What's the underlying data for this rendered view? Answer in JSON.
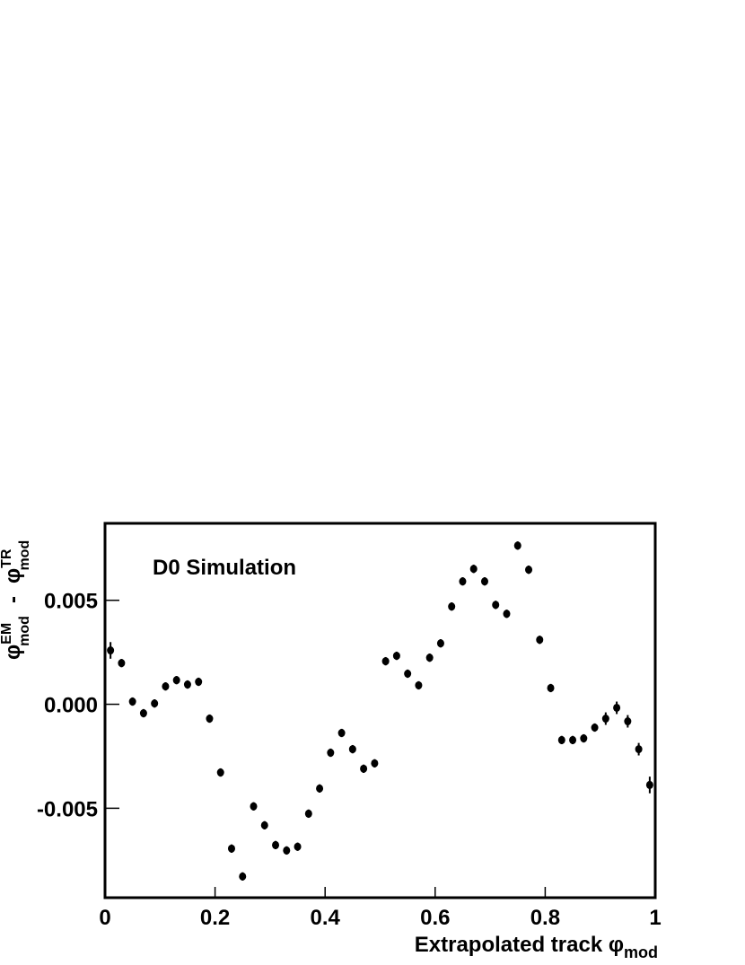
{
  "chart_data": {
    "type": "errorbar",
    "annotation": "D0 Simulation",
    "xlabel": {
      "text": "Extrapolated track φ",
      "sub": "mod"
    },
    "ylabel": {
      "symbol1": "φ",
      "sup1": "EM",
      "sub1": "mod",
      "minus": "-",
      "symbol2": "φ",
      "sup2": "TR",
      "sub2": "mod"
    },
    "x": [
      0.01,
      0.03,
      0.05,
      0.07,
      0.09,
      0.11,
      0.13,
      0.15,
      0.17,
      0.19,
      0.21,
      0.23,
      0.25,
      0.27,
      0.29,
      0.31,
      0.33,
      0.35,
      0.37,
      0.39,
      0.41,
      0.43,
      0.45,
      0.47,
      0.49,
      0.51,
      0.53,
      0.55,
      0.57,
      0.59,
      0.61,
      0.63,
      0.65,
      0.67,
      0.69,
      0.71,
      0.73,
      0.75,
      0.77,
      0.79,
      0.81,
      0.83,
      0.85,
      0.87,
      0.89,
      0.91,
      0.93,
      0.95,
      0.97,
      0.99
    ],
    "values": [
      0.00259,
      0.00198,
      0.00013,
      -0.00043,
      4e-05,
      0.00086,
      0.00116,
      0.00095,
      0.00108,
      -0.00069,
      -0.00328,
      -0.00694,
      -0.00828,
      -0.00491,
      -0.00582,
      -0.00677,
      -0.00703,
      -0.00685,
      -0.00526,
      -0.00405,
      -0.00233,
      -0.00138,
      -0.00216,
      -0.0031,
      -0.00284,
      0.00207,
      0.00233,
      0.00147,
      0.00091,
      0.00224,
      0.00293,
      0.0047,
      0.00591,
      0.00651,
      0.00591,
      0.00478,
      0.00435,
      0.00763,
      0.00647,
      0.0031,
      0.00078,
      -0.00172,
      -0.00172,
      -0.00164,
      -0.00112,
      -0.00069,
      -0.00017,
      -0.00082,
      -0.00216,
      -0.00388
    ],
    "errors": [
      0.0004,
      0.0002,
      0.0002,
      0.0002,
      0.0002,
      0.0002,
      0.0002,
      0.0002,
      0.0002,
      0.0002,
      0.0002,
      0.0002,
      0.0002,
      0.0002,
      0.0002,
      0.0002,
      0.0002,
      0.0002,
      0.0002,
      0.0002,
      0.0002,
      0.0002,
      0.0002,
      0.0002,
      0.0002,
      0.0002,
      0.0002,
      0.0002,
      0.0002,
      0.0002,
      0.0002,
      0.0002,
      0.0002,
      0.0002,
      0.0002,
      0.0002,
      0.0002,
      0.0002,
      0.0002,
      0.0002,
      0.0002,
      0.0002,
      0.0002,
      0.0002,
      0.0002,
      0.0003,
      0.0003,
      0.0003,
      0.0003,
      0.0004
    ],
    "color": "#000000",
    "xlim": [
      0,
      1
    ],
    "xticks": [
      0,
      0.2,
      0.4,
      0.6,
      0.8,
      1
    ],
    "ylim": [
      -0.0093,
      0.0087
    ],
    "yticks": [
      {
        "value": -0.005,
        "label": "-0.005"
      },
      {
        "value": 0,
        "label": "0.000"
      },
      {
        "value": 0.005,
        "label": "0.005"
      }
    ],
    "grid": false
  }
}
